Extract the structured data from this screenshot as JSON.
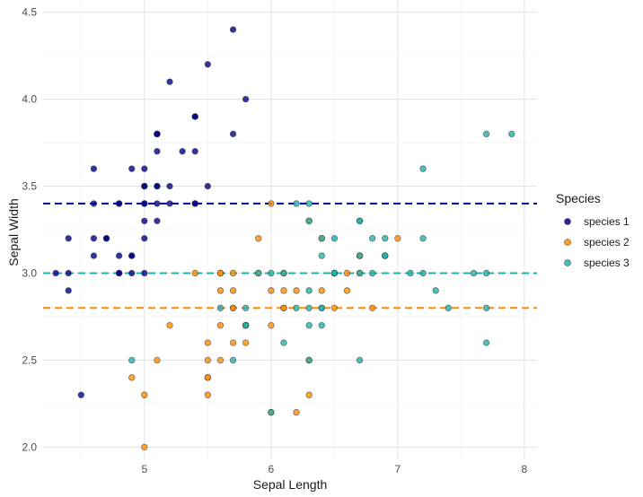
{
  "chart_data": {
    "type": "scatter",
    "title": "",
    "xlabel": "Sepal Length",
    "ylabel": "Sepal Width",
    "xlim": [
      4.2,
      8.1
    ],
    "ylim": [
      1.93,
      4.57
    ],
    "x_ticks": [
      5,
      6,
      7,
      8
    ],
    "x_tick_labels": [
      "5",
      "6",
      "7",
      "8"
    ],
    "y_ticks": [
      2.0,
      2.5,
      3.0,
      3.5,
      4.0,
      4.5
    ],
    "y_tick_labels": [
      "2.0",
      "2.5",
      "3.0",
      "3.5",
      "4.0",
      "4.5"
    ],
    "grid": true,
    "legend": {
      "title": "Species",
      "position": "right"
    },
    "series": [
      {
        "name": "species 1",
        "color": "#00008B",
        "points": [
          [
            5.1,
            3.5
          ],
          [
            4.9,
            3.0
          ],
          [
            4.7,
            3.2
          ],
          [
            4.6,
            3.1
          ],
          [
            5.0,
            3.6
          ],
          [
            5.4,
            3.9
          ],
          [
            4.6,
            3.4
          ],
          [
            5.0,
            3.4
          ],
          [
            4.4,
            2.9
          ],
          [
            4.9,
            3.1
          ],
          [
            5.4,
            3.7
          ],
          [
            4.8,
            3.4
          ],
          [
            4.8,
            3.0
          ],
          [
            4.3,
            3.0
          ],
          [
            5.8,
            4.0
          ],
          [
            5.7,
            4.4
          ],
          [
            5.4,
            3.9
          ],
          [
            5.1,
            3.5
          ],
          [
            5.7,
            3.8
          ],
          [
            5.1,
            3.8
          ],
          [
            5.4,
            3.4
          ],
          [
            5.1,
            3.7
          ],
          [
            4.6,
            3.6
          ],
          [
            5.1,
            3.3
          ],
          [
            4.8,
            3.4
          ],
          [
            5.0,
            3.0
          ],
          [
            5.0,
            3.4
          ],
          [
            5.2,
            3.5
          ],
          [
            5.2,
            3.4
          ],
          [
            4.7,
            3.2
          ],
          [
            4.8,
            3.1
          ],
          [
            5.4,
            3.4
          ],
          [
            5.2,
            4.1
          ],
          [
            5.5,
            4.2
          ],
          [
            4.9,
            3.1
          ],
          [
            5.0,
            3.2
          ],
          [
            5.5,
            3.5
          ],
          [
            4.9,
            3.6
          ],
          [
            4.4,
            3.0
          ],
          [
            5.1,
            3.4
          ],
          [
            5.0,
            3.5
          ],
          [
            4.5,
            2.3
          ],
          [
            4.4,
            3.2
          ],
          [
            5.0,
            3.5
          ],
          [
            5.1,
            3.8
          ],
          [
            4.8,
            3.0
          ],
          [
            5.1,
            3.8
          ],
          [
            4.6,
            3.2
          ],
          [
            5.3,
            3.7
          ],
          [
            5.0,
            3.3
          ]
        ]
      },
      {
        "name": "species 2",
        "color": "#FF8C00",
        "points": [
          [
            7.0,
            3.2
          ],
          [
            6.4,
            3.2
          ],
          [
            6.9,
            3.1
          ],
          [
            5.5,
            2.3
          ],
          [
            6.5,
            2.8
          ],
          [
            5.7,
            2.8
          ],
          [
            6.3,
            3.3
          ],
          [
            4.9,
            2.4
          ],
          [
            6.6,
            2.9
          ],
          [
            5.2,
            2.7
          ],
          [
            5.0,
            2.0
          ],
          [
            5.9,
            3.0
          ],
          [
            6.0,
            2.2
          ],
          [
            6.1,
            2.9
          ],
          [
            5.6,
            2.9
          ],
          [
            6.7,
            3.1
          ],
          [
            5.6,
            3.0
          ],
          [
            5.8,
            2.7
          ],
          [
            6.2,
            2.2
          ],
          [
            5.6,
            2.5
          ],
          [
            5.9,
            3.2
          ],
          [
            6.1,
            2.8
          ],
          [
            6.3,
            2.5
          ],
          [
            6.1,
            2.8
          ],
          [
            6.4,
            2.9
          ],
          [
            6.6,
            3.0
          ],
          [
            6.8,
            2.8
          ],
          [
            6.7,
            3.0
          ],
          [
            6.0,
            2.9
          ],
          [
            5.7,
            2.6
          ],
          [
            5.5,
            2.4
          ],
          [
            5.5,
            2.4
          ],
          [
            5.8,
            2.7
          ],
          [
            6.0,
            2.7
          ],
          [
            5.4,
            3.0
          ],
          [
            6.0,
            3.4
          ],
          [
            6.7,
            3.1
          ],
          [
            6.3,
            2.3
          ],
          [
            5.6,
            3.0
          ],
          [
            5.5,
            2.5
          ],
          [
            5.5,
            2.6
          ],
          [
            6.1,
            3.0
          ],
          [
            5.8,
            2.6
          ],
          [
            5.0,
            2.3
          ],
          [
            5.6,
            2.7
          ],
          [
            5.7,
            3.0
          ],
          [
            5.7,
            2.9
          ],
          [
            6.2,
            2.9
          ],
          [
            5.1,
            2.5
          ],
          [
            5.7,
            2.8
          ]
        ]
      },
      {
        "name": "species 3",
        "color": "#20B2AA",
        "points": [
          [
            6.3,
            3.3
          ],
          [
            5.8,
            2.7
          ],
          [
            7.1,
            3.0
          ],
          [
            6.3,
            2.9
          ],
          [
            6.5,
            3.0
          ],
          [
            7.6,
            3.0
          ],
          [
            4.9,
            2.5
          ],
          [
            7.3,
            2.9
          ],
          [
            6.7,
            2.5
          ],
          [
            7.2,
            3.6
          ],
          [
            6.5,
            3.2
          ],
          [
            6.4,
            2.7
          ],
          [
            6.8,
            3.0
          ],
          [
            5.7,
            2.5
          ],
          [
            5.8,
            2.8
          ],
          [
            6.4,
            3.2
          ],
          [
            6.5,
            3.0
          ],
          [
            7.7,
            3.8
          ],
          [
            7.7,
            2.6
          ],
          [
            6.0,
            2.2
          ],
          [
            6.9,
            3.2
          ],
          [
            5.6,
            2.8
          ],
          [
            7.7,
            2.8
          ],
          [
            6.3,
            2.7
          ],
          [
            6.7,
            3.3
          ],
          [
            7.2,
            3.2
          ],
          [
            6.2,
            2.8
          ],
          [
            6.1,
            3.0
          ],
          [
            6.4,
            2.8
          ],
          [
            7.2,
            3.0
          ],
          [
            7.4,
            2.8
          ],
          [
            7.9,
            3.8
          ],
          [
            6.4,
            2.8
          ],
          [
            6.3,
            2.8
          ],
          [
            6.1,
            2.6
          ],
          [
            7.7,
            3.0
          ],
          [
            6.3,
            3.4
          ],
          [
            6.4,
            3.1
          ],
          [
            6.0,
            3.0
          ],
          [
            6.9,
            3.1
          ],
          [
            6.7,
            3.1
          ],
          [
            6.9,
            3.1
          ],
          [
            5.8,
            2.7
          ],
          [
            6.8,
            3.2
          ],
          [
            6.7,
            3.3
          ],
          [
            6.7,
            3.0
          ],
          [
            6.3,
            2.5
          ],
          [
            6.5,
            3.0
          ],
          [
            6.2,
            3.4
          ],
          [
            5.9,
            3.0
          ]
        ]
      }
    ],
    "reference_lines": [
      {
        "y": 3.4,
        "color": "#00008B",
        "style": "dashed",
        "series": "species 1"
      },
      {
        "y": 2.8,
        "color": "#FF8C00",
        "style": "dashed",
        "series": "species 2"
      },
      {
        "y": 3.0,
        "color": "#20B2AA",
        "style": "dashed",
        "series": "species 3"
      }
    ]
  }
}
